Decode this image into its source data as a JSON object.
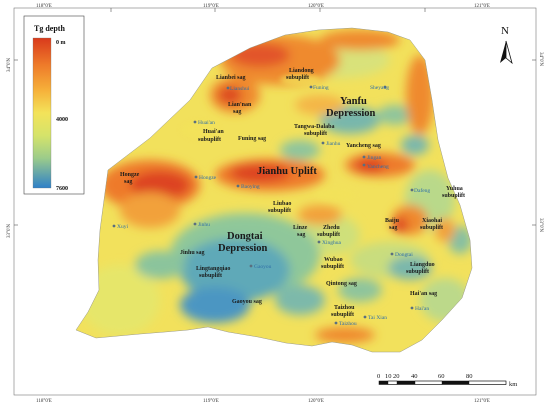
{
  "legend": {
    "title": "Tg depth",
    "top_label": "0 m",
    "mid_label": "4000",
    "bottom_label": "7600",
    "colors": [
      "#d93a1c",
      "#ee7b2a",
      "#f6b13a",
      "#f3e35a",
      "#d5e36a",
      "#9ccc8a",
      "#5aa8b8",
      "#2f80c8"
    ]
  },
  "coordinates": {
    "top": [
      "118°0'E",
      "119°0'E",
      "120°0'E",
      "121°0'E"
    ],
    "bottom": [
      "118°0'E",
      "119°0'E",
      "120°0'E",
      "121°0'E"
    ],
    "left": [
      "34°0'N",
      "33°0'N"
    ],
    "right": [
      "34°0'N",
      "33°0'N"
    ]
  },
  "north_arrow": {
    "letter": "N"
  },
  "scale_bar": {
    "ticks": [
      "0",
      "10",
      "20",
      "40",
      "60",
      "80"
    ],
    "unit": "km"
  },
  "major_units": {
    "yanfu_1": "Yanfu",
    "yanfu_2": "Depression",
    "jianhu": "Jianhu Uplift",
    "dongtai_1": "Dongtai",
    "dongtai_2": "Depression"
  },
  "sub_units": {
    "lianbei": "Lianbei sag",
    "liandong_1": "Liandong",
    "liandong_2": "subuplift",
    "lianan_1": "Lian'nan",
    "lianan_2": "sag",
    "huaian_sub_1": "Huai'an",
    "huaian_sub_2": "subuplift",
    "funing_sag": "Funing sag",
    "tangwa_1": "Tangwa-Dalaba",
    "tangwa_2": "subuplift",
    "yancheng_sag": "Yancheng sag",
    "hongze_1": "Hongze",
    "hongze_2": "sag",
    "yuhua_1": "Yuhua",
    "yuhua_2": "subuplift",
    "liubao_1": "Liubao",
    "liubao_2": "subuplift",
    "linze_1": "Linze",
    "linze_2": "sag",
    "zhedu_1": "Zhedu",
    "zhedu_2": "subuplift",
    "baiju_1": "Baiju",
    "baiju_2": "sag",
    "xiaohai_1": "Xiaohai",
    "xiaohai_2": "subuplift",
    "jinhu": "Jinhu sag",
    "lingtang_1": "Lingtangqiao",
    "lingtang_2": "subuplift",
    "wubao_1": "Wubao",
    "wubao_2": "subuplift",
    "liangduo_1": "Liangduo",
    "liangduo_2": "subuplift",
    "qintong": "Qintong sag",
    "gaoyou_sag": "Gaoyou sag",
    "haian_sag": "Hai'an sag",
    "taizhou_1": "Taizhou",
    "taizhou_2": "subuplift"
  },
  "cities": {
    "lianshui": "Lianshui",
    "funing": "Funing",
    "sheyang": "Sheyang",
    "huaian": "Huai'an",
    "jianhu": "Jianhu",
    "jingan": "Jingan",
    "yancheng": "Yancheng",
    "hongze": "Hongze",
    "baoying": "Baoying",
    "dafeng": "Dafeng",
    "xuyi": "Xuyi",
    "jinhu": "Jinhu",
    "xinghua": "Xinghua",
    "dongtai": "Dongtai",
    "gaoyou": "Gaoyou",
    "haian": "Hai'an",
    "taixian": "Tai Xian",
    "taizhou": "Taizhou"
  }
}
